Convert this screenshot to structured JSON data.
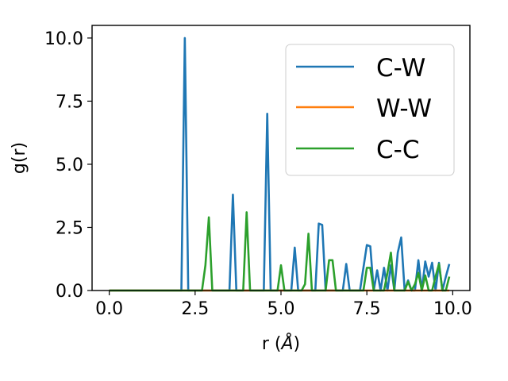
{
  "chart_data": {
    "type": "line",
    "xlabel": "r (Å)",
    "ylabel": "g(r)",
    "xlim": [
      -0.5,
      10.5
    ],
    "ylim": [
      0.0,
      10.5
    ],
    "xticks": [
      "0.0",
      "2.5",
      "5.0",
      "7.5",
      "10.0"
    ],
    "yticks": [
      "0.0",
      "2.5",
      "5.0",
      "7.5",
      "10.0"
    ],
    "grid": false,
    "legend_position": "top-right",
    "series": [
      {
        "name": "C-W",
        "color": "#1f77b4",
        "x": [
          0.0,
          2.1,
          2.2,
          2.3,
          3.5,
          3.6,
          3.7,
          4.5,
          4.6,
          4.7,
          5.3,
          5.4,
          5.5,
          6.0,
          6.1,
          6.2,
          6.3,
          6.8,
          6.9,
          7.0,
          7.3,
          7.4,
          7.5,
          7.6,
          7.7,
          7.8,
          7.9,
          8.0,
          8.1,
          8.2,
          8.3,
          8.4,
          8.5,
          8.6,
          8.7,
          8.8,
          8.9,
          9.0,
          9.1,
          9.2,
          9.3,
          9.4,
          9.5,
          9.6,
          9.7,
          9.8,
          9.9
        ],
        "y": [
          0.0,
          0.0,
          10.0,
          0.0,
          0.0,
          3.8,
          0.0,
          0.0,
          7.0,
          0.0,
          0.0,
          1.7,
          0.0,
          0.0,
          2.65,
          2.6,
          0.0,
          0.0,
          1.05,
          0.0,
          0.0,
          0.9,
          1.8,
          1.75,
          0.0,
          0.8,
          0.0,
          0.9,
          0.0,
          1.0,
          0.0,
          1.5,
          2.1,
          0.0,
          0.4,
          0.0,
          0.0,
          1.2,
          0.0,
          1.15,
          0.55,
          1.1,
          0.0,
          1.1,
          0.0,
          0.55,
          1.05
        ]
      },
      {
        "name": "W-W",
        "color": "#ff7f0e",
        "x": [
          0.0,
          9.9
        ],
        "y": [
          0.0,
          0.0
        ]
      },
      {
        "name": "C-C",
        "color": "#2ca02c",
        "x": [
          0.0,
          2.7,
          2.8,
          2.9,
          3.0,
          3.9,
          4.0,
          4.1,
          4.9,
          5.0,
          5.1,
          5.6,
          5.7,
          5.8,
          5.9,
          6.3,
          6.4,
          6.5,
          6.6,
          7.4,
          7.5,
          7.6,
          7.7,
          8.0,
          8.1,
          8.2,
          8.3,
          8.6,
          8.7,
          8.8,
          8.9,
          9.0,
          9.1,
          9.2,
          9.3,
          9.4,
          9.5,
          9.6,
          9.7,
          9.8,
          9.9
        ],
        "y": [
          0.0,
          0.0,
          1.0,
          2.9,
          0.0,
          0.0,
          3.1,
          0.0,
          0.0,
          1.0,
          0.0,
          0.0,
          0.25,
          2.25,
          0.0,
          0.0,
          1.2,
          1.2,
          0.0,
          0.0,
          0.9,
          0.9,
          0.0,
          0.0,
          0.7,
          1.5,
          0.0,
          0.0,
          0.35,
          0.0,
          0.25,
          0.7,
          0.0,
          0.6,
          0.0,
          0.0,
          0.55,
          1.05,
          0.0,
          0.0,
          0.55
        ]
      }
    ]
  }
}
